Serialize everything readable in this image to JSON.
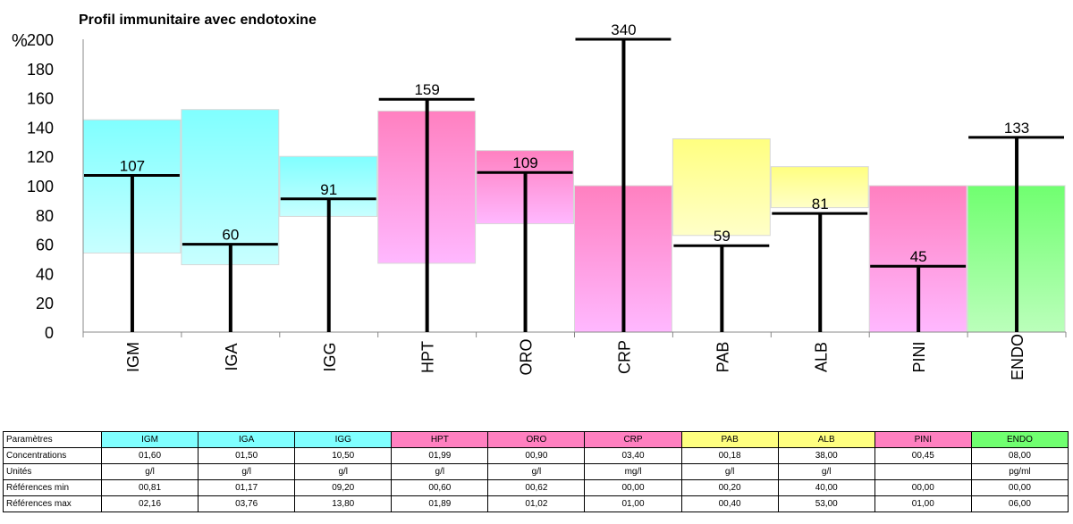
{
  "chart_data": {
    "type": "bar",
    "title": "Profil immunitaire avec endotoxine",
    "ylabel": "%",
    "ylim": [
      0,
      200
    ],
    "yticks": [
      0,
      20,
      40,
      60,
      80,
      100,
      120,
      140,
      160,
      180,
      200
    ],
    "categories": [
      "IGM",
      "IGA",
      "IGG",
      "HPT",
      "ORO",
      "CRP",
      "PAB",
      "ALB",
      "PINI",
      "ENDO"
    ],
    "values": [
      107,
      60,
      91,
      159,
      109,
      340,
      59,
      81,
      45,
      133
    ],
    "value_labels": [
      "107",
      "60",
      "91",
      "159",
      "109",
      "340",
      "59",
      "81",
      "45",
      "133"
    ],
    "range_low": [
      54,
      46,
      79,
      47,
      74,
      0,
      66,
      85,
      0,
      0
    ],
    "range_high": [
      145,
      152,
      120,
      151,
      124,
      100,
      132,
      113,
      100,
      100
    ],
    "group_colors": [
      "#80ffff",
      "#80ffff",
      "#80ffff",
      "#ff80c0",
      "#ff80c0",
      "#ff80c0",
      "#ffff80",
      "#ffff80",
      "#ff80c0",
      "#70ff70"
    ],
    "group_fade_colors": [
      "#c8ffff",
      "#c8ffff",
      "#c8ffff",
      "#ffb8ff",
      "#ffb8ff",
      "#ffb8ff",
      "#ffffc8",
      "#ffffc8",
      "#ffb8ff",
      "#bbffbb"
    ]
  },
  "table": {
    "header_label": "Paramètres",
    "columns": [
      "IGM",
      "IGA",
      "IGG",
      "HPT",
      "ORO",
      "CRP",
      "PAB",
      "ALB",
      "PINI",
      "ENDO"
    ],
    "header_colors": [
      "#80ffff",
      "#80ffff",
      "#80ffff",
      "#ff80c0",
      "#ff80c0",
      "#ff80c0",
      "#ffff80",
      "#ffff80",
      "#ff80c0",
      "#70ff70"
    ],
    "rows": [
      {
        "label": "Concentrations",
        "cells": [
          "01,60",
          "01,50",
          "10,50",
          "01,99",
          "00,90",
          "03,40",
          "00,18",
          "38,00",
          "00,45",
          "08,00"
        ]
      },
      {
        "label": "Unités",
        "cells": [
          "g/l",
          "g/l",
          "g/l",
          "g/l",
          "g/l",
          "mg/l",
          "g/l",
          "g/l",
          "",
          "pg/ml"
        ]
      },
      {
        "label": "Références min",
        "cells": [
          "00,81",
          "01,17",
          "09,20",
          "00,60",
          "00,62",
          "00,00",
          "00,20",
          "40,00",
          "00,00",
          "00,00"
        ]
      },
      {
        "label": "Références max",
        "cells": [
          "02,16",
          "03,76",
          "13,80",
          "01,89",
          "01,02",
          "01,00",
          "00,40",
          "53,00",
          "01,00",
          "06,00"
        ]
      }
    ]
  }
}
